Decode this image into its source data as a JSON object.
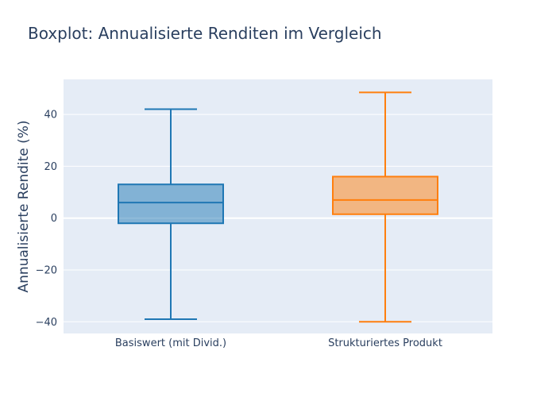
{
  "chart_data": {
    "type": "box",
    "title": "Boxplot: Annualisierte Renditen im Vergleich",
    "xlabel": "",
    "ylabel": "Annualisierte Rendite (%)",
    "ylim": [
      -44.5,
      53.5
    ],
    "yticks": [
      -40,
      -20,
      0,
      20,
      40
    ],
    "ytick_labels": [
      "−40",
      "−20",
      "0",
      "20",
      "40"
    ],
    "categories": [
      "Basiswert (mit Divid.)",
      "Strukturiertes Produkt"
    ],
    "series": [
      {
        "category": "Basiswert (mit Divid.)",
        "color": "#1f77b4",
        "fill": "rgba(31,119,180,0.5)",
        "min": -39,
        "q1": -2,
        "median": 6,
        "q3": 13,
        "max": 42
      },
      {
        "category": "Strukturiertes Produkt",
        "color": "#ff7f0e",
        "fill": "rgba(255,127,14,0.5)",
        "min": -40,
        "q1": 1.5,
        "median": 7,
        "q3": 16,
        "max": 48.5
      }
    ],
    "grid": true,
    "legend": "none",
    "plot_bgcolor": "#e5ecf6",
    "grid_color": "#ffffff"
  }
}
